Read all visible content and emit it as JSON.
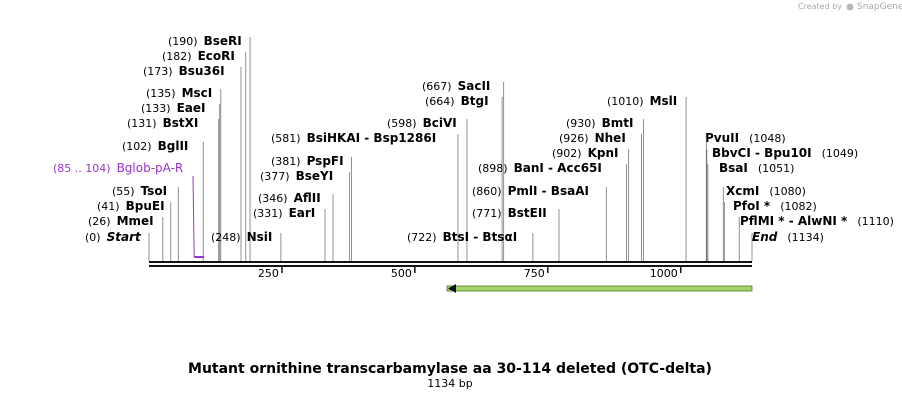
{
  "watermark": {
    "prefix": "Created by",
    "brand": "SnapGene"
  },
  "title": "Mutant ornithine transcarbamylase aa 30-114 deleted (OTC-delta)",
  "subtitle": "1134 bp",
  "ruler": {
    "ticks": [
      "250",
      "500",
      "750",
      "1000"
    ]
  },
  "features": [
    {
      "position": "(85 .. 104)",
      "name": "Bglob-pA-R"
    }
  ],
  "sites": [
    {
      "position": "(190)",
      "name": "BseRI"
    },
    {
      "position": "(182)",
      "name": "EcoRI"
    },
    {
      "position": "(173)",
      "name": "Bsu36I"
    },
    {
      "position": "(135)",
      "name": "MscI"
    },
    {
      "position": "(133)",
      "name": "EaeI"
    },
    {
      "position": "(131)",
      "name": "BstXI"
    },
    {
      "position": "(102)",
      "name": "BglII"
    },
    {
      "position": "(55)",
      "name": "TsoI"
    },
    {
      "position": "(41)",
      "name": "BpuEI"
    },
    {
      "position": "(26)",
      "name": "MmeI"
    },
    {
      "position": "(0)",
      "name": "Start"
    },
    {
      "position": "(248)",
      "name": "NsiI"
    },
    {
      "position": "(346)",
      "name": "AflII"
    },
    {
      "position": "(331)",
      "name": "EarI"
    },
    {
      "position": "(381)",
      "name": "PspFI"
    },
    {
      "position": "(377)",
      "name": "BseYI"
    },
    {
      "position": "(581)",
      "name": "BsiHKAI  - Bsp1286I"
    },
    {
      "position": "(598)",
      "name": "BciVI"
    },
    {
      "position": "(667)",
      "name": "SacII"
    },
    {
      "position": "(664)",
      "name": "BtgI"
    },
    {
      "position": "(722)",
      "name": "BtsI  - BtsαI"
    },
    {
      "position": "(898)",
      "name": "BanI  - Acc65I"
    },
    {
      "position": "(860)",
      "name": "PmlI  - BsaAI"
    },
    {
      "position": "(771)",
      "name": "BstEII"
    },
    {
      "position": "(930)",
      "name": "BmtI"
    },
    {
      "position": "(926)",
      "name": "NheI"
    },
    {
      "position": "(902)",
      "name": "KpnI"
    },
    {
      "position": "(1010)",
      "name": "MslI"
    },
    {
      "position": "(1048)",
      "name": "PvuII"
    },
    {
      "position": "(1049)",
      "name": "BbvCI  - Bpu10I"
    },
    {
      "position": "(1051)",
      "name": "BsaI"
    },
    {
      "position": "(1080)",
      "name": "XcmI"
    },
    {
      "position": "(1082)",
      "name": "PfoI *"
    },
    {
      "position": "(1110)",
      "name": "PflMI *  - AlwNI *"
    },
    {
      "position": "(1134)",
      "name": "End"
    }
  ]
}
